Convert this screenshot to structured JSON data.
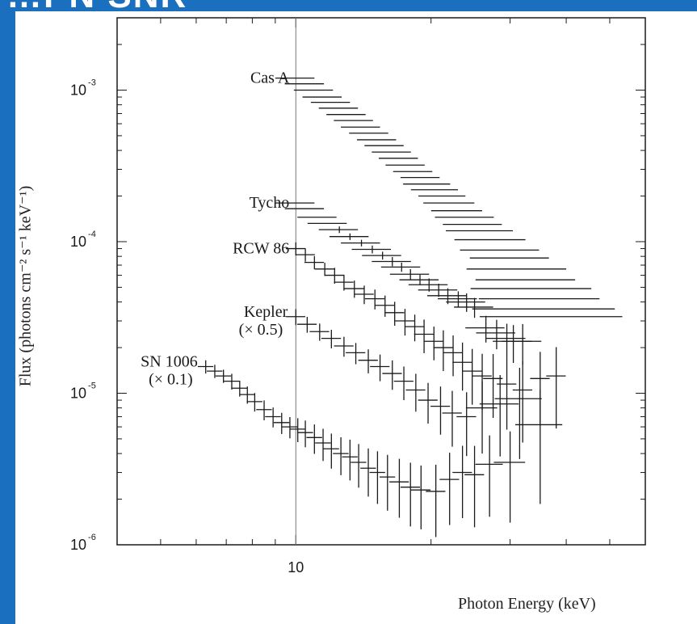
{
  "banner": {
    "text": "…PN SNR"
  },
  "colors": {
    "frame": "#1a6fbf",
    "ink": "#1a1a1a"
  },
  "chart_data": {
    "type": "scatter",
    "title": "",
    "xlabel": "Photon Energy (keV)",
    "ylabel": "Flux (photons cm⁻² s⁻¹ keV⁻¹)",
    "x_scale": "log",
    "y_scale": "log",
    "xlim": [
      4,
      60
    ],
    "ylim": [
      1e-06,
      0.003
    ],
    "x_tick_labels": [
      {
        "value": 10,
        "text": "10"
      }
    ],
    "y_tick_labels": [
      {
        "value": 0.001,
        "base": "10",
        "exp": "-3"
      },
      {
        "value": 0.0001,
        "base": "10",
        "exp": "-4"
      },
      {
        "value": 1e-05,
        "base": "10",
        "exp": "-5"
      },
      {
        "value": 1e-06,
        "base": "10",
        "exp": "-6"
      }
    ],
    "vertical_marker_x": 10,
    "grid": false,
    "series": [
      {
        "name": "Cas A",
        "points": [
          [
            10.0,
            0.0012,
            0.1,
            0
          ],
          [
            10.5,
            0.0011,
            0.1,
            0
          ],
          [
            11.0,
            0.001,
            0.1,
            0
          ],
          [
            11.5,
            0.0009,
            0.1,
            0
          ],
          [
            12.0,
            0.00083,
            0.1,
            0
          ],
          [
            12.5,
            0.00076,
            0.1,
            0
          ],
          [
            13.0,
            0.00069,
            0.1,
            0
          ],
          [
            13.5,
            0.00063,
            0.1,
            0
          ],
          [
            14.0,
            0.00057,
            0.1,
            0
          ],
          [
            14.6,
            0.00052,
            0.1,
            0
          ],
          [
            15.2,
            0.00047,
            0.1,
            0
          ],
          [
            15.8,
            0.00043,
            0.1,
            0
          ],
          [
            16.4,
            0.00039,
            0.1,
            0
          ],
          [
            17.0,
            0.000355,
            0.1,
            0
          ],
          [
            17.6,
            0.00032,
            0.1,
            0
          ],
          [
            18.3,
            0.00029,
            0.1,
            0
          ],
          [
            19.0,
            0.000265,
            0.1,
            0
          ],
          [
            19.7,
            0.00024,
            0.12,
            0
          ],
          [
            20.5,
            0.00022,
            0.12,
            0
          ],
          [
            21.3,
            0.0002,
            0.12,
            0
          ],
          [
            22.1,
            0.00018,
            0.13,
            0
          ],
          [
            23.0,
            0.00016,
            0.13,
            0
          ],
          [
            24.0,
            0.000145,
            0.15,
            0
          ],
          [
            25.0,
            0.00013,
            0.15,
            0
          ],
          [
            26.0,
            0.000118,
            0.17,
            0
          ],
          [
            27.5,
            0.000103,
            0.18,
            0
          ],
          [
            29.0,
            8.8e-05,
            0.2,
            0
          ],
          [
            30.5,
            7.8e-05,
            0.2,
            0
          ],
          [
            32.0,
            6.6e-05,
            0.25,
            0
          ],
          [
            33.5,
            5.6e-05,
            0.25,
            0
          ],
          [
            35.0,
            4.9e-05,
            0.3,
            0
          ],
          [
            36.5,
            4.2e-05,
            0.3,
            0
          ],
          [
            38.0,
            3.6e-05,
            0.35,
            0
          ],
          [
            39.5,
            3.2e-05,
            0.35,
            0
          ]
        ]
      },
      {
        "name": "Tycho",
        "points": [
          [
            10.0,
            0.00018,
            0.1,
            0
          ],
          [
            10.5,
            0.000165,
            0.1,
            0
          ],
          [
            11.2,
            0.000145,
            0.1,
            0
          ],
          [
            11.8,
            0.000132,
            0.1,
            0
          ],
          [
            12.5,
            0.00012,
            0.1,
            0.05
          ],
          [
            13.2,
            0.000108,
            0.1,
            0.05
          ],
          [
            14.0,
            9.8e-05,
            0.1,
            0.05
          ],
          [
            14.8,
            8.9e-05,
            0.1,
            0.06
          ],
          [
            15.6,
            8.1e-05,
            0.1,
            0.06
          ],
          [
            16.4,
            7.4e-05,
            0.1,
            0.07
          ],
          [
            17.2,
            6.8e-05,
            0.1,
            0.07
          ],
          [
            18.0,
            6.1e-05,
            0.1,
            0.08
          ],
          [
            18.9,
            5.6e-05,
            0.1,
            0.08
          ],
          [
            19.8,
            5.2e-05,
            0.1,
            0.1
          ],
          [
            20.8,
            4.8e-05,
            0.1,
            0.1
          ],
          [
            21.8,
            4.4e-05,
            0.1,
            0.12
          ],
          [
            23.0,
            4.2e-05,
            0.1,
            0.12
          ],
          [
            24.0,
            4e-05,
            0.1,
            0.14
          ],
          [
            25.0,
            3.7e-05,
            0.1,
            0.15
          ],
          [
            26.5,
            2.7e-05,
            0.1,
            0.2
          ],
          [
            28.0,
            2.5e-05,
            0.1,
            0.22
          ],
          [
            29.5,
            2.3e-05,
            0.1,
            0.25
          ],
          [
            30.5,
            2.2e-05,
            0.1,
            0.28
          ],
          [
            32.0,
            2.2e-05,
            0.1,
            0.3
          ]
        ]
      },
      {
        "name": "RCW 86",
        "points": [
          [
            10.0,
            9e-05,
            0.05,
            0.1
          ],
          [
            10.5,
            8.2e-05,
            0.05,
            0.1
          ],
          [
            11.0,
            7.3e-05,
            0.05,
            0.1
          ],
          [
            11.6,
            6.6e-05,
            0.05,
            0.1
          ],
          [
            12.2,
            6e-05,
            0.05,
            0.12
          ],
          [
            12.8,
            5.4e-05,
            0.05,
            0.12
          ],
          [
            13.5,
            4.9e-05,
            0.05,
            0.13
          ],
          [
            14.2,
            4.5e-05,
            0.05,
            0.14
          ],
          [
            15.0,
            4.2e-05,
            0.05,
            0.15
          ],
          [
            15.8,
            3.8e-05,
            0.05,
            0.16
          ],
          [
            16.6,
            3.4e-05,
            0.05,
            0.18
          ],
          [
            17.5,
            3e-05,
            0.05,
            0.2
          ],
          [
            18.4,
            2.75e-05,
            0.05,
            0.2
          ],
          [
            19.3,
            2.45e-05,
            0.05,
            0.25
          ],
          [
            20.3,
            2.2e-05,
            0.05,
            0.25
          ],
          [
            21.3,
            2e-05,
            0.05,
            0.3
          ],
          [
            22.4,
            1.85e-05,
            0.05,
            0.3
          ],
          [
            23.5,
            1.6e-05,
            0.05,
            0.35
          ],
          [
            24.7,
            1.4e-05,
            0.05,
            0.4
          ],
          [
            26.0,
            1.3e-05,
            0.05,
            0.4
          ],
          [
            27.5,
            1.25e-05,
            0.05,
            0.45
          ],
          [
            29.5,
            1.15e-05,
            0.05,
            0.5
          ],
          [
            32.0,
            1.05e-05,
            0.05,
            0.55
          ],
          [
            35.0,
            1.25e-05,
            0.05,
            0.5
          ],
          [
            38.0,
            1.3e-05,
            0.05,
            0.55
          ]
        ]
      },
      {
        "name": "Kepler",
        "note": "(× 0.5)",
        "points": [
          [
            10.0,
            3.2e-05,
            0.05,
            0.12
          ],
          [
            10.6,
            2.85e-05,
            0.05,
            0.12
          ],
          [
            11.3,
            2.55e-05,
            0.05,
            0.13
          ],
          [
            12.0,
            2.3e-05,
            0.05,
            0.14
          ],
          [
            12.8,
            2.05e-05,
            0.05,
            0.15
          ],
          [
            13.6,
            1.85e-05,
            0.05,
            0.16
          ],
          [
            14.5,
            1.65e-05,
            0.05,
            0.18
          ],
          [
            15.4,
            1.5e-05,
            0.05,
            0.2
          ],
          [
            16.4,
            1.35e-05,
            0.05,
            0.22
          ],
          [
            17.4,
            1.2e-05,
            0.05,
            0.25
          ],
          [
            18.5,
            1.05e-05,
            0.05,
            0.28
          ],
          [
            19.7,
            9e-06,
            0.05,
            0.3
          ],
          [
            21.0,
            8.2e-06,
            0.05,
            0.35
          ],
          [
            22.3,
            7.4e-06,
            0.05,
            0.4
          ],
          [
            24.0,
            7e-06,
            0.05,
            0.45
          ],
          [
            26.0,
            8e-06,
            0.08,
            0.5
          ],
          [
            28.5,
            8.5e-06,
            0.1,
            0.55
          ],
          [
            31.5,
            9.2e-06,
            0.12,
            0.6
          ],
          [
            35.0,
            6.2e-06,
            0.12,
            0.7
          ]
        ]
      },
      {
        "name": "SN 1006",
        "note": "(× 0.1)",
        "points": [
          [
            6.3,
            1.5e-05,
            0.04,
            0.1
          ],
          [
            6.6,
            1.4e-05,
            0.04,
            0.1
          ],
          [
            6.9,
            1.3e-05,
            0.04,
            0.1
          ],
          [
            7.2,
            1.2e-05,
            0.04,
            0.12
          ],
          [
            7.5,
            1.08e-05,
            0.04,
            0.12
          ],
          [
            7.8,
            9.8e-06,
            0.04,
            0.13
          ],
          [
            8.1,
            8.8e-06,
            0.04,
            0.14
          ],
          [
            8.5,
            7.8e-06,
            0.04,
            0.15
          ],
          [
            8.9,
            7e-06,
            0.04,
            0.15
          ],
          [
            9.3,
            6.4e-06,
            0.04,
            0.16
          ],
          [
            9.7,
            6e-06,
            0.04,
            0.16
          ],
          [
            10.1,
            5.8e-06,
            0.04,
            0.18
          ],
          [
            10.5,
            5.5e-06,
            0.04,
            0.2
          ],
          [
            11.0,
            5.1e-06,
            0.04,
            0.22
          ],
          [
            11.5,
            4.7e-06,
            0.04,
            0.24
          ],
          [
            12.0,
            4.3e-06,
            0.04,
            0.26
          ],
          [
            12.6,
            4e-06,
            0.04,
            0.28
          ],
          [
            13.2,
            3.8e-06,
            0.04,
            0.3
          ],
          [
            13.8,
            3.5e-06,
            0.04,
            0.32
          ],
          [
            14.5,
            3.2e-06,
            0.04,
            0.35
          ],
          [
            15.2,
            3e-06,
            0.04,
            0.38
          ],
          [
            16.0,
            2.8e-06,
            0.04,
            0.4
          ],
          [
            17.0,
            2.6e-06,
            0.05,
            0.42
          ],
          [
            18.0,
            2.4e-06,
            0.05,
            0.45
          ],
          [
            19.0,
            2.3e-06,
            0.05,
            0.45
          ],
          [
            20.5,
            2.25e-06,
            0.05,
            0.5
          ],
          [
            22.0,
            2.7e-06,
            0.05,
            0.5
          ],
          [
            23.5,
            3e-06,
            0.05,
            0.5
          ],
          [
            25.0,
            2.9e-06,
            0.05,
            0.55
          ],
          [
            27.0,
            3.4e-06,
            0.07,
            0.55
          ],
          [
            30.0,
            3.5e-06,
            0.08,
            0.6
          ]
        ]
      }
    ]
  }
}
